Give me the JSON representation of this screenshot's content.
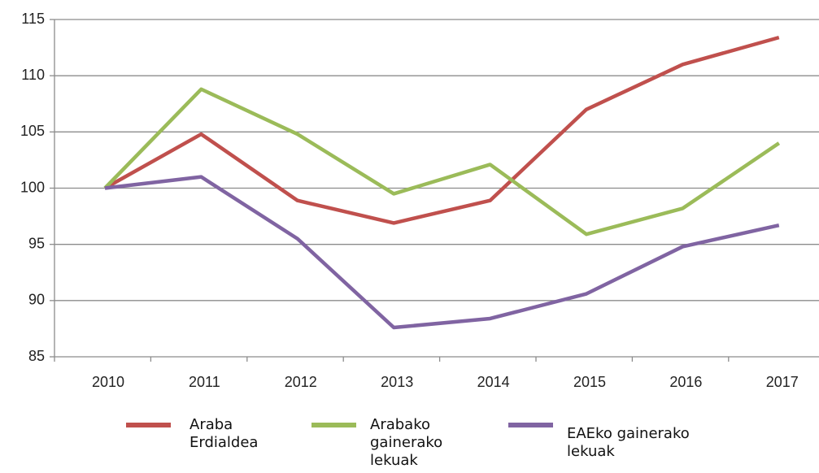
{
  "chart_data": {
    "type": "line",
    "categories": [
      "2010",
      "2011",
      "2012",
      "2013",
      "2014",
      "2015",
      "2016",
      "2017"
    ],
    "series": [
      {
        "name": "Araba Erdialdea",
        "color": "#c0504d",
        "values": [
          100,
          104.8,
          98.9,
          96.9,
          98.9,
          107,
          111,
          113.4
        ]
      },
      {
        "name": "Arabako gainerako lekuak",
        "color": "#9bbb59",
        "values": [
          100,
          108.8,
          104.8,
          99.5,
          102.1,
          95.9,
          98.2,
          104
        ]
      },
      {
        "name": "EAEko gainerako lekuak",
        "color": "#8064a2",
        "values": [
          100,
          101,
          95.5,
          87.6,
          88.4,
          90.6,
          94.8,
          96.7
        ]
      }
    ],
    "ylim": [
      85,
      115
    ],
    "yticks": [
      85,
      90,
      95,
      100,
      105,
      110,
      115
    ],
    "grid": true,
    "legend": "bottom"
  }
}
